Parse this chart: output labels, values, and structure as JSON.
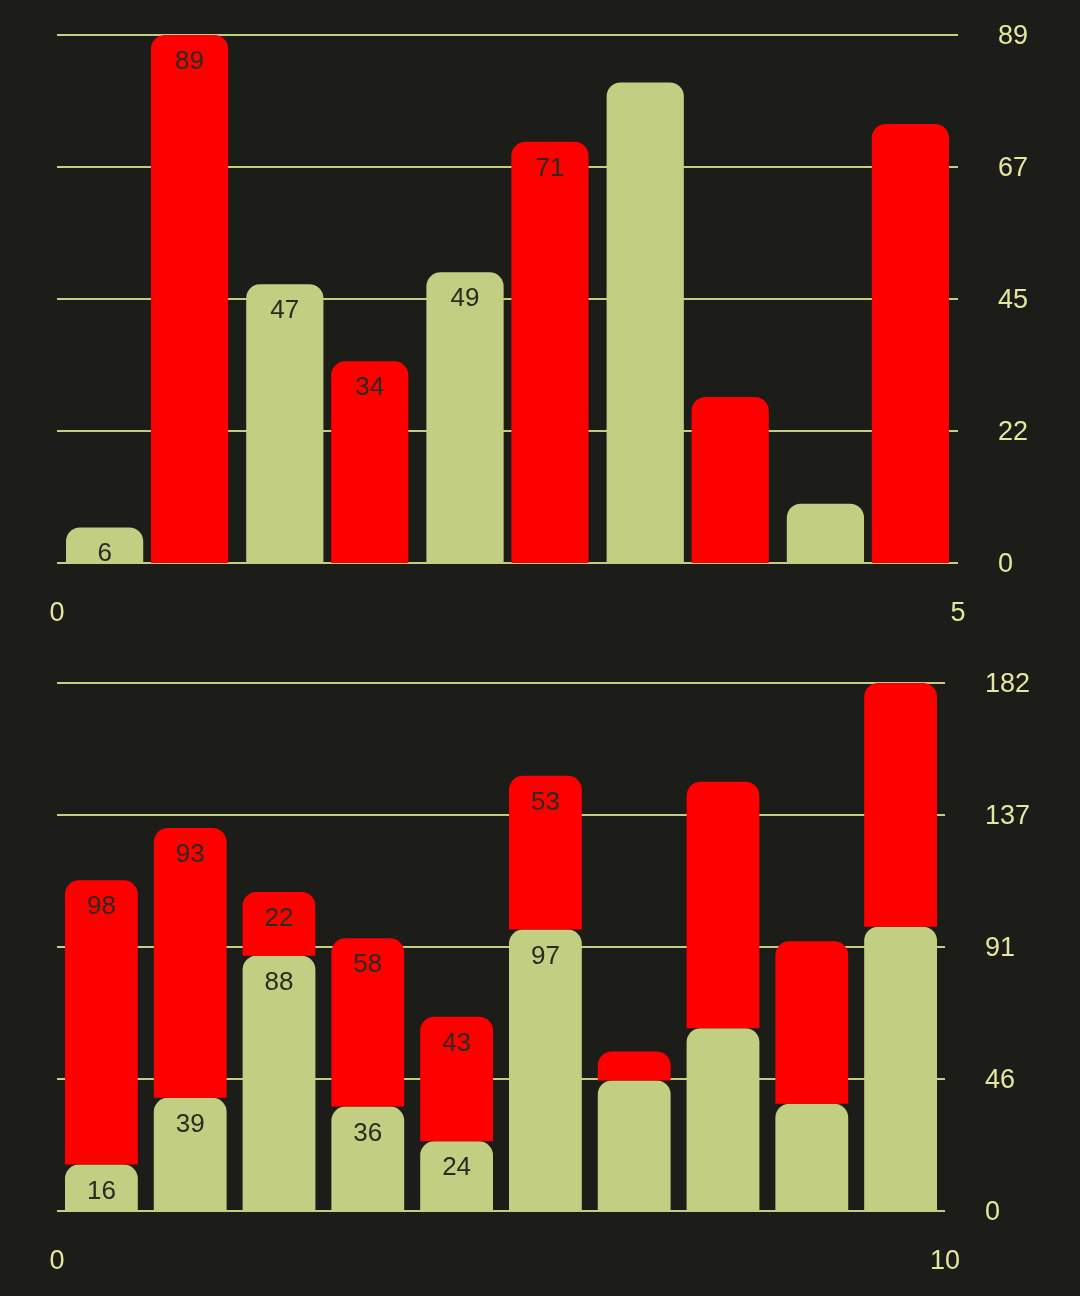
{
  "chart_data": [
    {
      "type": "bar",
      "xlim": [
        0,
        5
      ],
      "xticks": [
        0,
        5
      ],
      "ylim": [
        0,
        89
      ],
      "yticks": [
        0,
        {
          "value": 22.25,
          "label": "22"
        },
        {
          "value": 44.5,
          "label": "45"
        },
        {
          "value": 66.75,
          "label": "67"
        },
        89
      ],
      "grid": "y",
      "series": [
        {
          "color": "#c2cf82",
          "x": [
            0.5,
            1.5,
            2.5,
            3.5,
            4.5
          ],
          "values": [
            6,
            47,
            49,
            81,
            10
          ],
          "value_labels": [
            "6",
            "47",
            "49",
            null,
            null
          ]
        },
        {
          "color": "#ff0000",
          "x": [
            0.5,
            1.5,
            2.5,
            3.5,
            4.5
          ],
          "values": [
            89,
            34,
            71,
            28,
            74
          ],
          "value_labels": [
            "89",
            "34",
            "71",
            null,
            null
          ]
        }
      ]
    },
    {
      "type": "bar",
      "stacked": true,
      "xlim": [
        0,
        10
      ],
      "xticks": [
        0,
        10
      ],
      "ylim": [
        0,
        182
      ],
      "yticks": [
        0,
        {
          "value": 45.5,
          "label": "46"
        },
        91,
        {
          "value": 136.5,
          "label": "137"
        },
        182
      ],
      "grid": "y",
      "series": [
        {
          "color": "#c2cf82",
          "x": [
            0.5,
            1.5,
            2.5,
            3.5,
            4.5,
            5.5,
            6.5,
            7.5,
            8.5,
            9.5
          ],
          "values": [
            16,
            39,
            88,
            36,
            24,
            97,
            45,
            63,
            37,
            98
          ],
          "value_labels": [
            "16",
            "39",
            "88",
            "36",
            "24",
            "97",
            null,
            null,
            null,
            null
          ]
        },
        {
          "color": "#ff0000",
          "x": [
            0.5,
            1.5,
            2.5,
            3.5,
            4.5,
            5.5,
            6.5,
            7.5,
            8.5,
            9.5
          ],
          "values": [
            98,
            93,
            22,
            58,
            43,
            53,
            10,
            85,
            56,
            84
          ],
          "value_labels": [
            "98",
            "93",
            "22",
            "58",
            "43",
            "53",
            null,
            null,
            null,
            null
          ]
        }
      ]
    }
  ]
}
